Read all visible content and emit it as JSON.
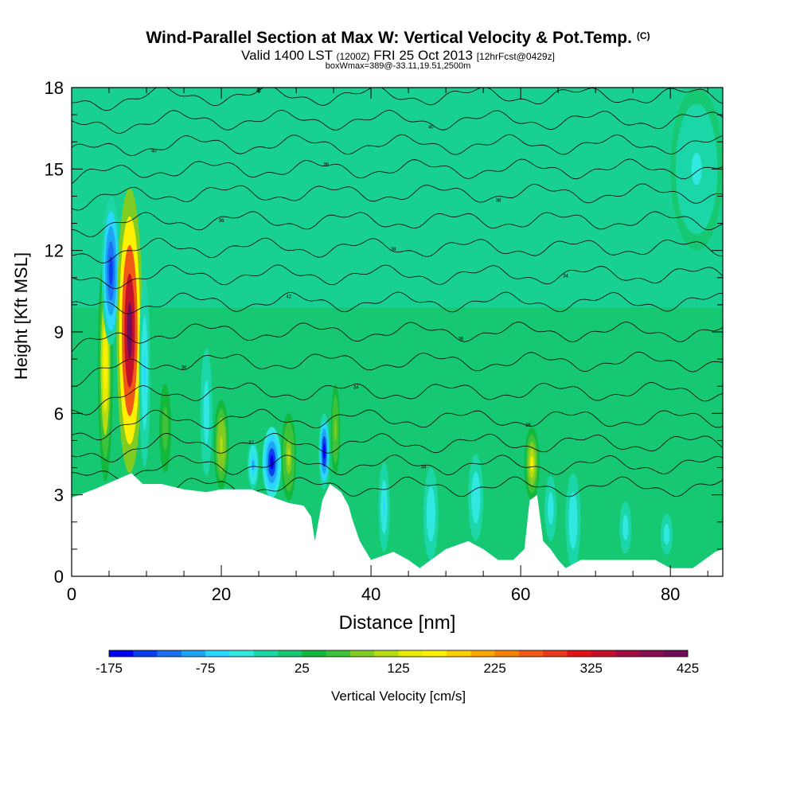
{
  "header": {
    "title": "Wind-Parallel Section at Max W: Vertical Velocity & Pot.Temp.",
    "title_suffix": "(C)",
    "subtitle_a": "Valid 1400 LST",
    "subtitle_b": "(1200Z)",
    "subtitle_c": "FRI 25 Oct 2013",
    "subtitle_d": "[12hrFcst@0429z]",
    "subtitle2": "boxWmax=389@-33.11,19.51,2500m"
  },
  "chart_data": {
    "type": "heatmap",
    "xlabel": "Distance [nm]",
    "ylabel": "Height [Kft MSL]",
    "xlim": [
      0,
      87
    ],
    "ylim": [
      0,
      18
    ],
    "x_ticks": [
      0,
      20,
      40,
      60,
      80
    ],
    "y_ticks": [
      0,
      3,
      6,
      9,
      12,
      15,
      18
    ],
    "colorbar": {
      "label": "Vertical Velocity [cm/s]",
      "min": -175,
      "max": 425,
      "step": 25,
      "tick_labels": [
        -175,
        -75,
        25,
        125,
        225,
        325,
        425
      ],
      "colors": [
        "#0000ee",
        "#0a3cf0",
        "#1a72f2",
        "#1ea4f5",
        "#2ad7ff",
        "#30e8e0",
        "#1bd6a6",
        "#16c872",
        "#12b83c",
        "#3ec23a",
        "#80cc22",
        "#b4dc10",
        "#e8ec00",
        "#fff000",
        "#fcd000",
        "#faa800",
        "#f58200",
        "#f05a14",
        "#e83a1a",
        "#e01414",
        "#c4102a",
        "#a00c42",
        "#880c50",
        "#700c58"
      ]
    },
    "terrain_kft": [
      [
        0,
        2.9
      ],
      [
        3,
        3.2
      ],
      [
        5.5,
        3.5
      ],
      [
        8,
        3.8
      ],
      [
        9.5,
        3.4
      ],
      [
        12,
        3.4
      ],
      [
        15,
        3.2
      ],
      [
        18,
        3.1
      ],
      [
        20,
        3.2
      ],
      [
        24,
        3.2
      ],
      [
        27,
        2.9
      ],
      [
        29,
        2.7
      ],
      [
        31,
        2.6
      ],
      [
        32,
        2.2
      ],
      [
        32.5,
        1.3
      ],
      [
        33.5,
        2.8
      ],
      [
        34.5,
        3.4
      ],
      [
        36,
        3.1
      ],
      [
        37,
        2.6
      ],
      [
        37.5,
        2.1
      ],
      [
        38.5,
        1.3
      ],
      [
        40,
        0.6
      ],
      [
        43,
        0.9
      ],
      [
        45,
        0.6
      ],
      [
        46.5,
        0.3
      ],
      [
        48,
        0.6
      ],
      [
        50,
        1.0
      ],
      [
        53,
        1.3
      ],
      [
        55,
        1.0
      ],
      [
        57,
        0.6
      ],
      [
        59,
        0.6
      ],
      [
        60.5,
        1.0
      ],
      [
        61.2,
        2.8
      ],
      [
        62.2,
        3.0
      ],
      [
        63,
        1.3
      ],
      [
        64,
        1.0
      ],
      [
        65,
        0.6
      ],
      [
        66,
        0.3
      ],
      [
        68,
        0.6
      ],
      [
        72,
        0.6
      ],
      [
        78,
        0.6
      ],
      [
        80,
        0.3
      ],
      [
        83,
        0.3
      ],
      [
        86,
        0.9
      ],
      [
        87,
        1.0
      ]
    ],
    "cells": [
      {
        "x0": 3.5,
        "x1": 5.5,
        "y0": 3.5,
        "y1": 12.0,
        "w": 160
      },
      {
        "x0": 4.0,
        "x1": 6.5,
        "y0": 8.5,
        "y1": 14.0,
        "w": -150
      },
      {
        "x0": 6.0,
        "x1": 9.5,
        "y0": 3.8,
        "y1": 14.3,
        "w": 420
      },
      {
        "x0": 9.0,
        "x1": 10.5,
        "y0": 4.0,
        "y1": 11.0,
        "w": -60
      },
      {
        "x0": 11.5,
        "x1": 13.5,
        "y0": 3.4,
        "y1": 7.5,
        "w": 60
      },
      {
        "x0": 17.0,
        "x1": 19.0,
        "y0": 3.1,
        "y1": 9.0,
        "w": -40
      },
      {
        "x0": 19.0,
        "x1": 21.0,
        "y0": 3.2,
        "y1": 6.5,
        "w": 120
      },
      {
        "x0": 23.5,
        "x1": 25.0,
        "y0": 3.2,
        "y1": 5.0,
        "w": -80
      },
      {
        "x0": 25.5,
        "x1": 28.0,
        "y0": 2.9,
        "y1": 5.5,
        "w": -170
      },
      {
        "x0": 28.0,
        "x1": 30.0,
        "y0": 2.8,
        "y1": 6.0,
        "w": 110
      },
      {
        "x0": 33.0,
        "x1": 34.5,
        "y0": 3.2,
        "y1": 6.0,
        "w": -160
      },
      {
        "x0": 34.5,
        "x1": 36.0,
        "y0": 3.3,
        "y1": 7.5,
        "w": 80
      },
      {
        "x0": 41.0,
        "x1": 42.5,
        "y0": 0.9,
        "y1": 4.2,
        "w": -60
      },
      {
        "x0": 47.0,
        "x1": 49.0,
        "y0": 0.6,
        "y1": 4.0,
        "w": -50
      },
      {
        "x0": 53.0,
        "x1": 55.0,
        "y0": 1.3,
        "y1": 4.5,
        "w": -50
      },
      {
        "x0": 60.5,
        "x1": 62.5,
        "y0": 2.8,
        "y1": 5.5,
        "w": 150
      },
      {
        "x0": 63.0,
        "x1": 65.0,
        "y0": 1.0,
        "y1": 4.0,
        "w": -40
      },
      {
        "x0": 66.0,
        "x1": 68.0,
        "y0": 0.3,
        "y1": 3.8,
        "w": -50
      },
      {
        "x0": 73.0,
        "x1": 75.0,
        "y0": 0.6,
        "y1": 3.0,
        "w": -40
      },
      {
        "x0": 78.5,
        "x1": 80.5,
        "y0": 0.6,
        "y1": 2.5,
        "w": -40
      },
      {
        "x0": 80.0,
        "x1": 87.0,
        "y0": 12.0,
        "y1": 18.0,
        "w": -30
      }
    ],
    "theta_contours": [
      {
        "label": "36",
        "base": 3.3
      },
      {
        "label": "34",
        "base": 4.1
      },
      {
        "label": "32",
        "base": 4.9
      },
      {
        "label": "36",
        "base": 5.8
      },
      {
        "label": "34",
        "base": 6.8
      },
      {
        "label": "38",
        "base": 7.9
      },
      {
        "label": "36",
        "base": 9.0
      },
      {
        "label": "42",
        "base": 10.1
      },
      {
        "label": "34",
        "base": 11.1
      },
      {
        "label": "38",
        "base": 12.1
      },
      {
        "label": "36",
        "base": 13.1
      },
      {
        "label": "38",
        "base": 14.1
      },
      {
        "label": "36",
        "base": 15.0
      },
      {
        "label": "40",
        "base": 15.9
      },
      {
        "label": "40",
        "base": 16.8
      },
      {
        "label": "42",
        "base": 17.7
      }
    ]
  }
}
